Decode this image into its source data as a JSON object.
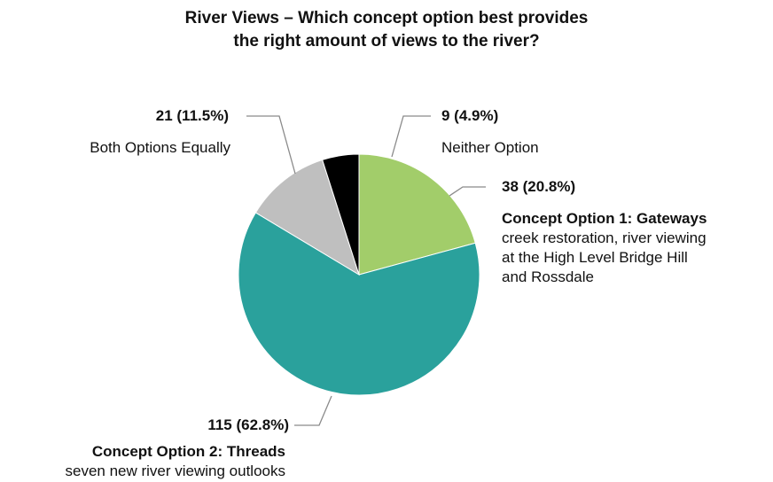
{
  "chart_data": {
    "type": "pie",
    "title_line1": "River Views – Which concept option best provides",
    "title_line2": "the right amount of views to the river?",
    "slices": [
      {
        "value": 38,
        "value_label": "38 (20.8%)",
        "name": "Concept Option 1: Gateways",
        "desc": [
          "creek restoration, river viewing",
          "at the High Level Bridge Hill",
          "and Rossdale"
        ],
        "color": "#a2cd6a"
      },
      {
        "value": 115,
        "value_label": "115 (62.8%)",
        "name": "Concept Option 2: Threads",
        "desc": [
          "seven new river viewing outlooks"
        ],
        "color": "#2aa19c"
      },
      {
        "value": 21,
        "value_label": "21 (11.5%)",
        "name": "",
        "desc": [
          "Both Options Equally"
        ],
        "color": "#bfbfbf"
      },
      {
        "value": 9,
        "value_label": "9 (4.9%)",
        "name": "",
        "desc": [
          "Neither Option"
        ],
        "color": "#000000"
      }
    ]
  }
}
